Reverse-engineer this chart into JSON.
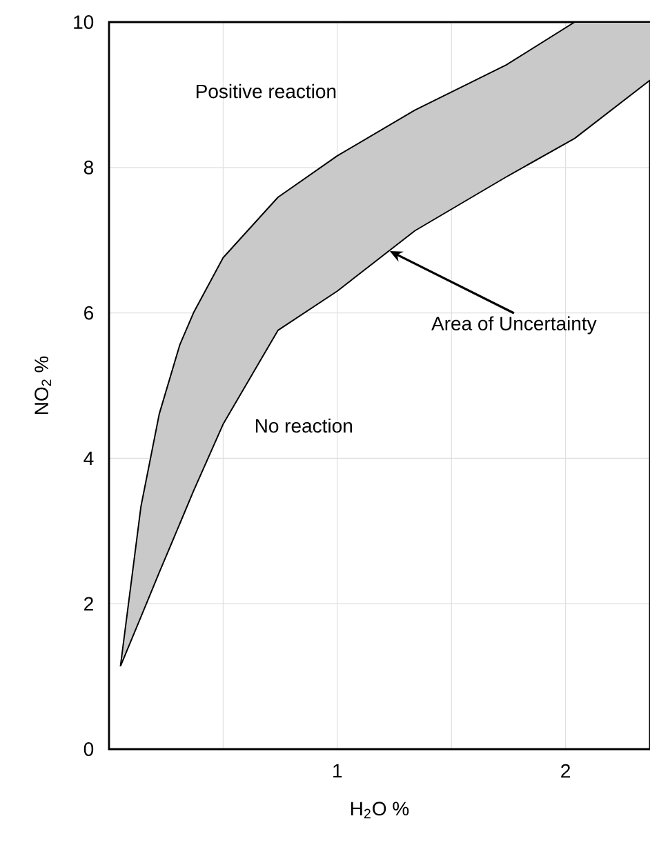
{
  "chart_data": {
    "type": "line",
    "xlabel": "H$_{2}$O %",
    "ylabel": "NO$_{2}$ %",
    "xlim": [
      0,
      2.37
    ],
    "ylim": [
      0,
      10
    ],
    "xticks": [
      {
        "value": 0.5,
        "label": null
      },
      1,
      {
        "value": 1.5,
        "label": null
      },
      2
    ],
    "yticks": [
      0,
      2,
      4,
      6,
      8,
      10
    ],
    "grid": true,
    "series": [
      {
        "color": "#000000",
        "x": [
          0.05,
          0.14,
          0.22,
          0.31,
          0.37,
          0.5,
          0.74,
          1.0,
          1.34,
          1.74,
          2.04,
          2.37
        ],
        "values": [
          1.14,
          3.34,
          4.61,
          5.56,
          6.0,
          6.76,
          7.59,
          8.16,
          8.79,
          9.41,
          10,
          10
        ],
        "lower": [
          1.14,
          1.82,
          2.43,
          3.1,
          3.55,
          4.47,
          5.76,
          6.3,
          7.13,
          7.87,
          8.4,
          9.2
        ],
        "upper": [
          1.14,
          3.34,
          4.61,
          5.56,
          6.0,
          6.76,
          7.59,
          8.16,
          8.79,
          9.41,
          10,
          10
        ]
      },
      {
        "color": "#000000",
        "x": [
          0.05,
          0.14,
          0.22,
          0.31,
          0.37,
          0.5,
          0.74,
          1.0,
          1.34,
          1.74,
          2.04,
          2.37
        ],
        "values": [
          1.14,
          1.82,
          2.43,
          3.1,
          3.55,
          4.47,
          5.76,
          6.3,
          7.13,
          7.87,
          8.4,
          9.2
        ]
      }
    ],
    "annotations": [
      "Positive reaction",
      "No reaction",
      {
        "text": "Area of Uncertainty",
        "x": 1.23,
        "y": 6.85
      }
    ]
  }
}
